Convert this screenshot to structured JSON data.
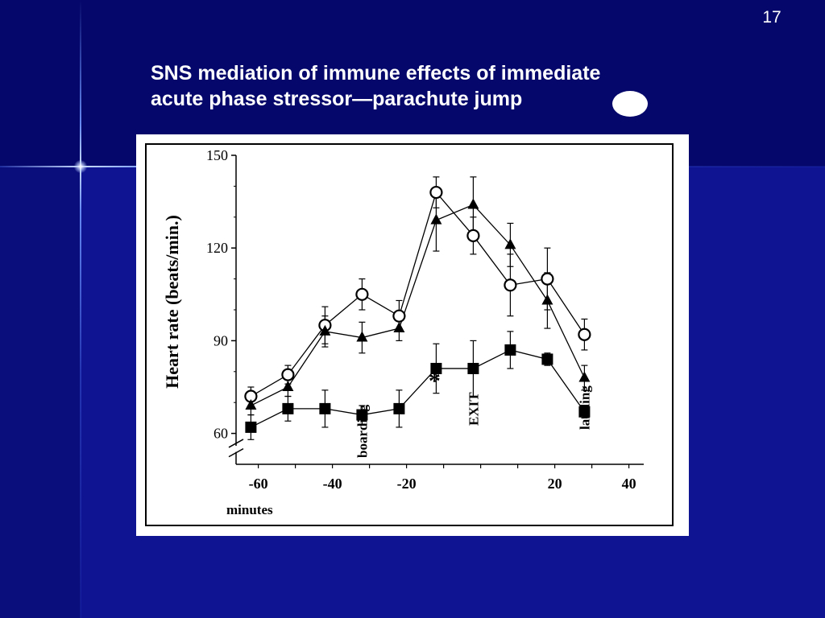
{
  "slide": {
    "number": "17",
    "title_line1": "SNS mediation of immune effects of immediate",
    "title_line2": "acute phase stressor—parachute jump"
  },
  "colors": {
    "background": "#0f1592",
    "top_band": "#05086a",
    "accent_line": "#9fb8ff",
    "text": "#ffffff"
  },
  "chart_data": {
    "type": "line",
    "ylabel": "Heart rate (beats/min.)",
    "xlabel": "minutes",
    "yticks": [
      "60",
      "90",
      "120",
      "150"
    ],
    "xticks": [
      "-60",
      "-40",
      "-20",
      "20",
      "40"
    ],
    "xtick_values": [
      -60,
      -40,
      -20,
      20,
      40
    ],
    "ylim": [
      50,
      150
    ],
    "xlim": [
      -66,
      44
    ],
    "grid": false,
    "axis_break": true,
    "x": [
      -62,
      -52,
      -42,
      -32,
      -22,
      -12,
      -2,
      8,
      18,
      28
    ],
    "series": [
      {
        "marker": "open-circle",
        "values": [
          72,
          79,
          95,
          105,
          98,
          138,
          124,
          108,
          110,
          92
        ],
        "errors": [
          3,
          3,
          6,
          5,
          5,
          5,
          6,
          10,
          10,
          5
        ]
      },
      {
        "marker": "filled-triangle",
        "values": [
          69,
          75,
          93,
          91,
          94,
          129,
          134,
          121,
          103,
          78
        ],
        "errors": [
          3,
          3,
          5,
          5,
          4,
          10,
          9,
          7,
          9,
          4
        ]
      },
      {
        "marker": "filled-square",
        "values": [
          62,
          68,
          68,
          66,
          68,
          81,
          81,
          87,
          84,
          67
        ],
        "errors": [
          4,
          4,
          6,
          3,
          6,
          8,
          9,
          6,
          2,
          2
        ]
      }
    ],
    "annotations": [
      {
        "text": "boarding",
        "x": -32
      },
      {
        "text": "*",
        "x": -12
      },
      {
        "text": "EXIT",
        "x": -2
      },
      {
        "text": "landing",
        "x": 28
      }
    ]
  }
}
